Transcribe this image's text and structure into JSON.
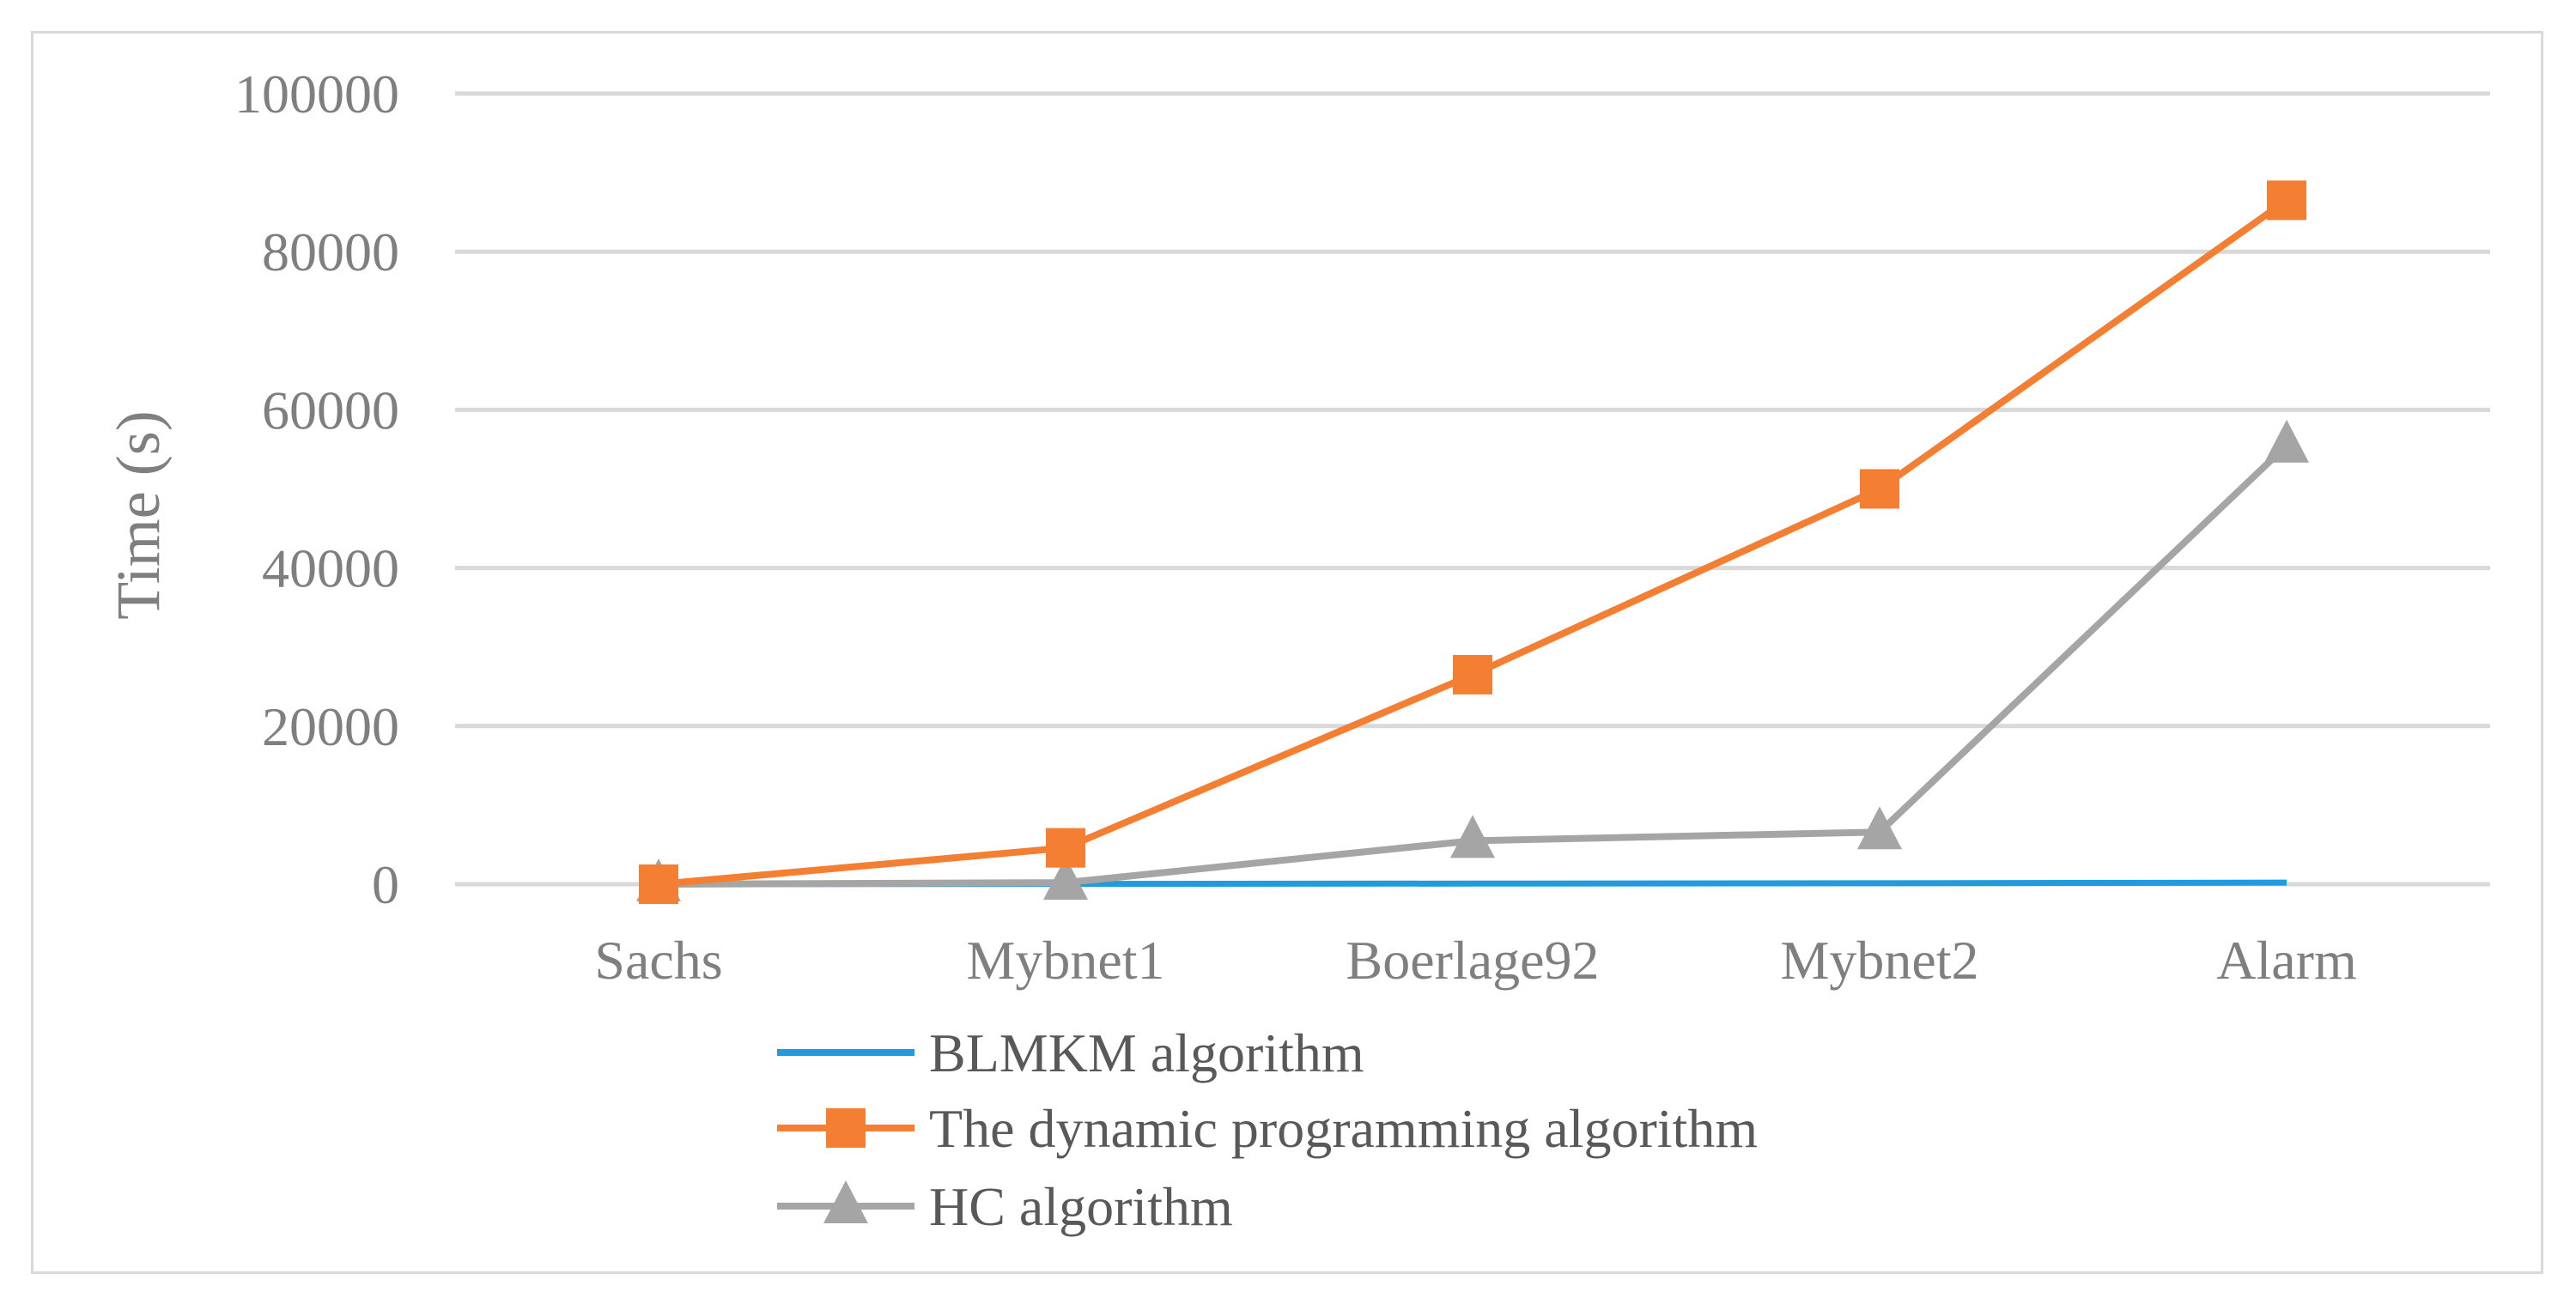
{
  "chart_data": {
    "type": "line",
    "title": "",
    "xlabel": "",
    "ylabel": "Time (s)",
    "categories": [
      "Sachs",
      "Mybnet1",
      "Boerlage92",
      "Mybnet2",
      "Alarm"
    ],
    "ylim": [
      0,
      100000
    ],
    "yticks": [
      0,
      20000,
      40000,
      60000,
      80000,
      100000
    ],
    "ytick_labels": [
      "0",
      "20000",
      "40000",
      "60000",
      "80000",
      "100000"
    ],
    "grid": true,
    "legend_position": "bottom",
    "series": [
      {
        "name": "BLMKM algorithm",
        "color": "#1f9bde",
        "marker": "none",
        "values": [
          10,
          40,
          80,
          120,
          200
        ]
      },
      {
        "name": "The dynamic programming algorithm",
        "color": "#f47f32",
        "marker": "square",
        "values": [
          0,
          4600,
          26500,
          50000,
          86500
        ]
      },
      {
        "name": "HC algorithm",
        "color": "#a5a5a5",
        "marker": "triangle",
        "values": [
          0,
          200,
          5500,
          6600,
          55500
        ]
      }
    ]
  }
}
